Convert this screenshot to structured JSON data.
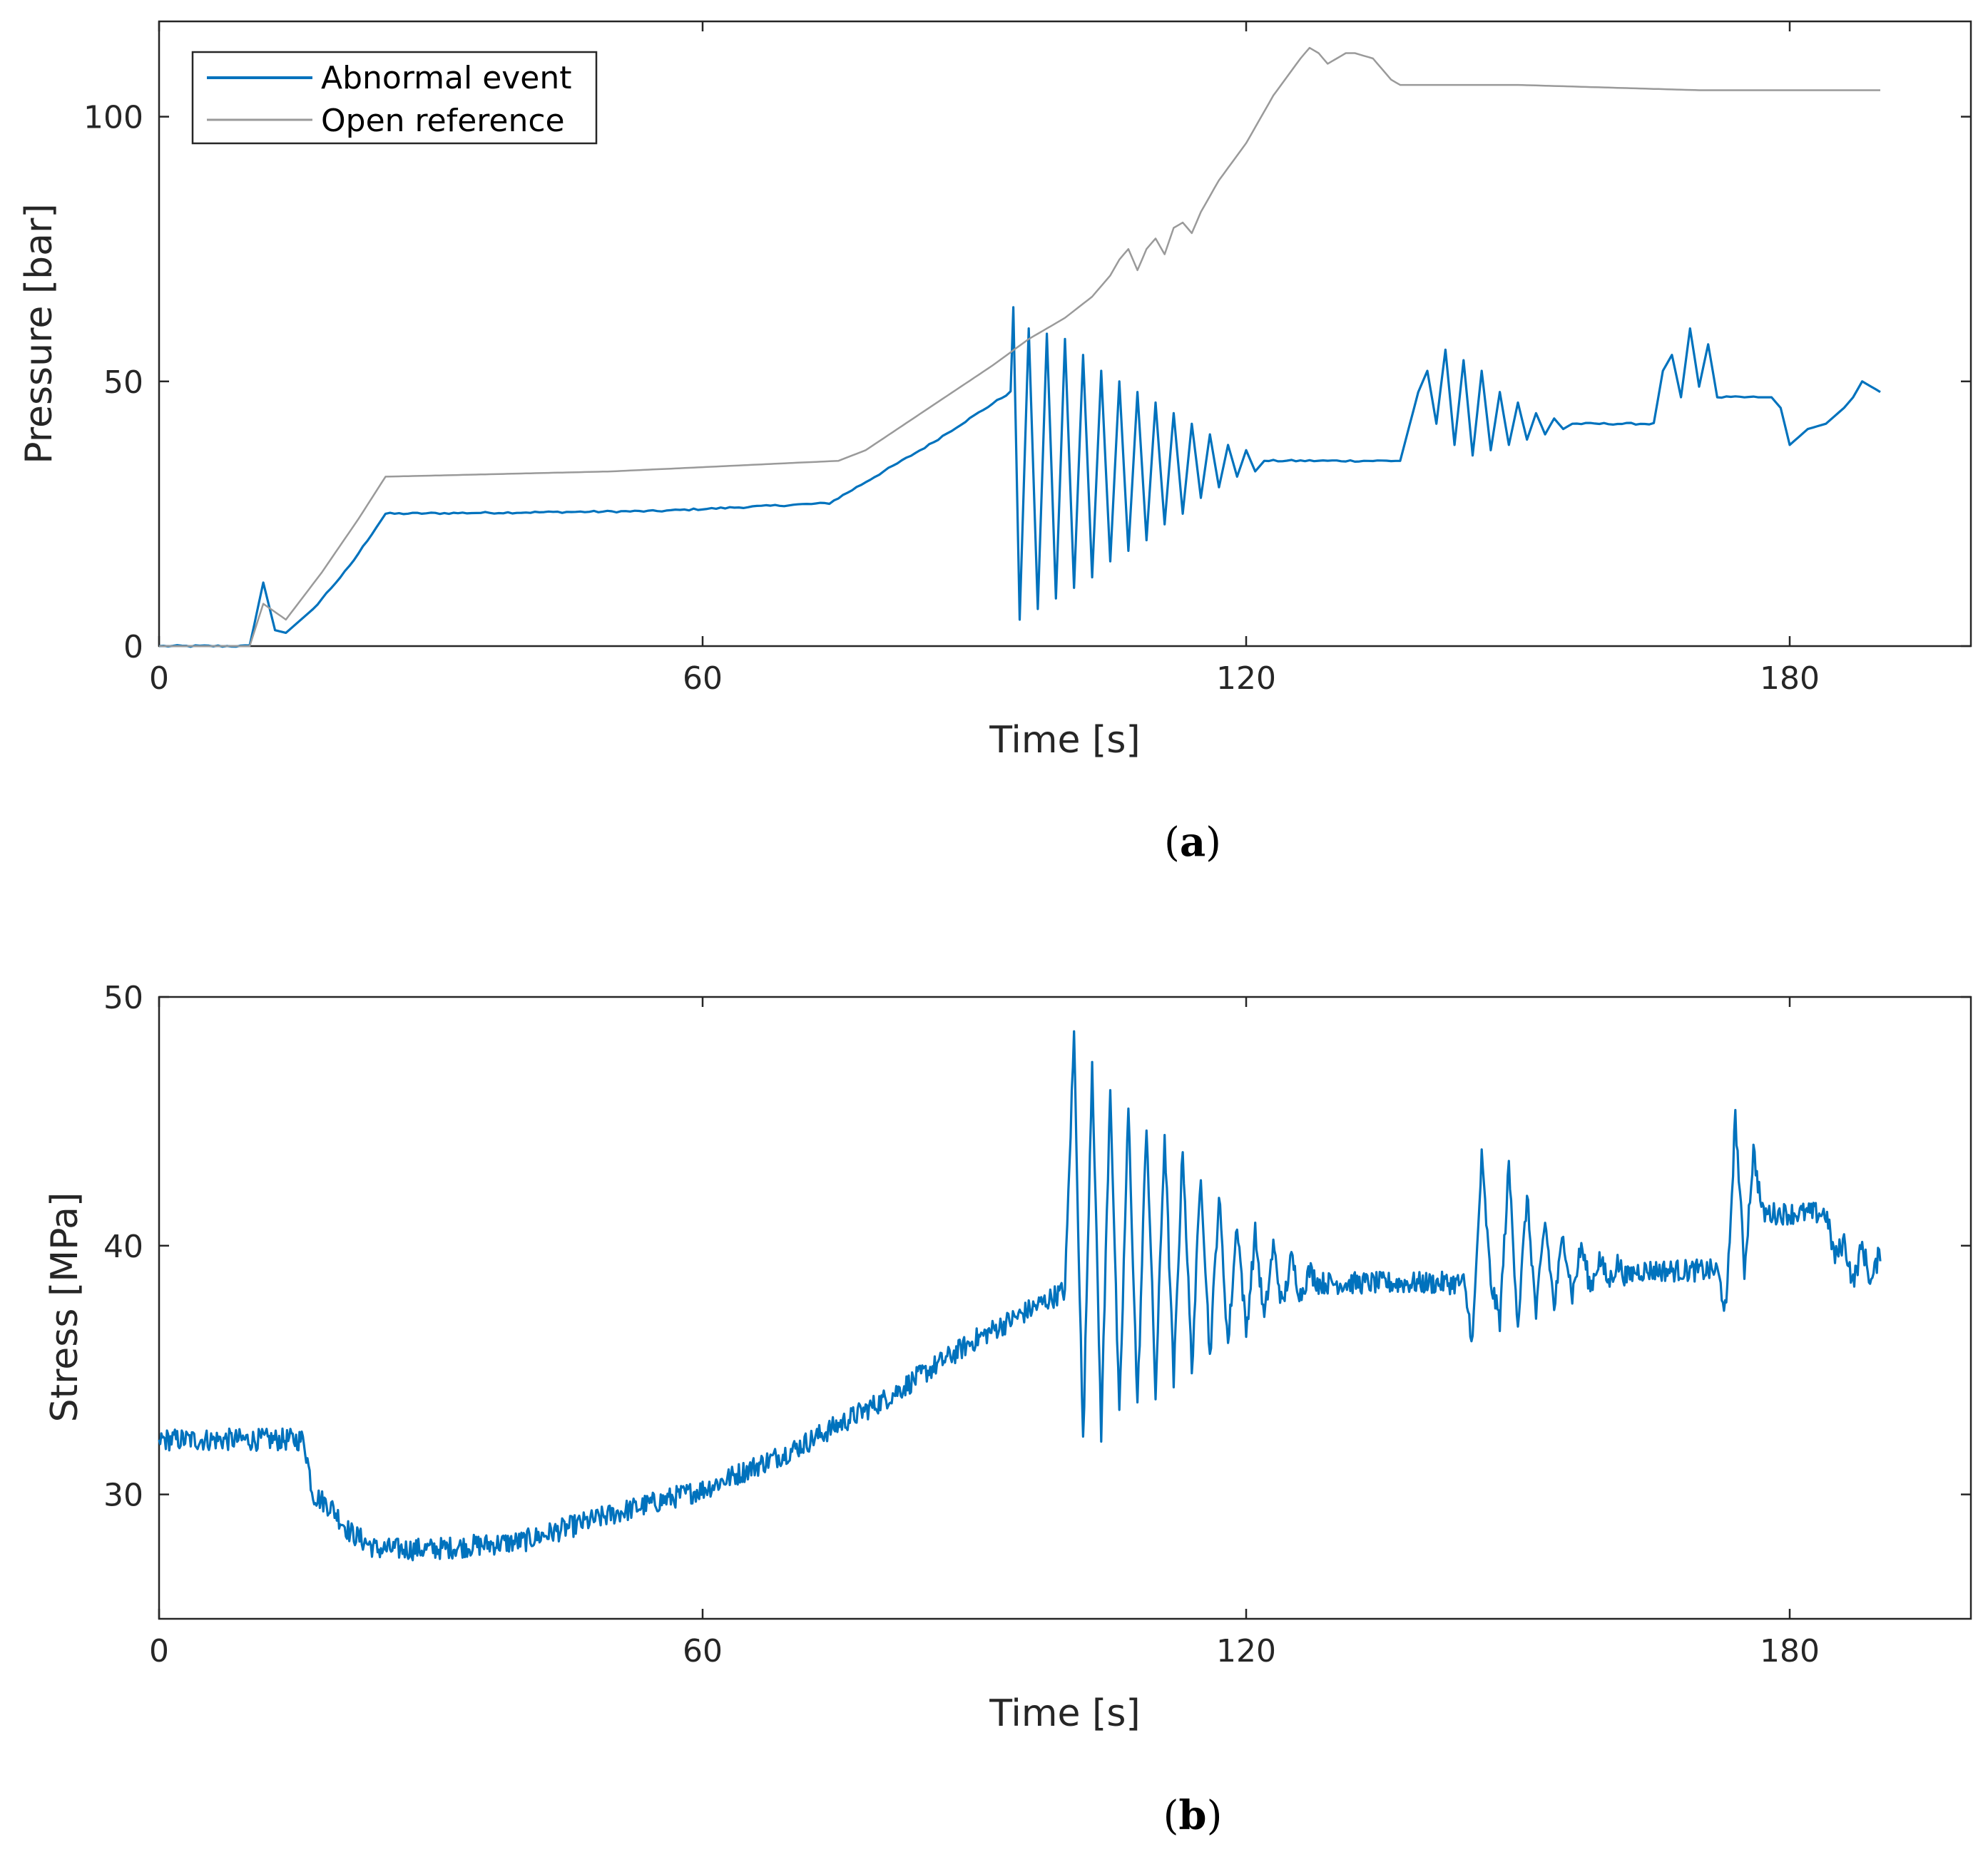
{
  "chart_data": [
    {
      "id": "a",
      "type": "line",
      "caption": "a",
      "xlabel": "Time [s]",
      "ylabel": "Pressure [bar]",
      "xlim": [
        0,
        200
      ],
      "ylim": [
        0,
        118
      ],
      "xticks": [
        0,
        60,
        120,
        180
      ],
      "yticks": [
        0,
        50,
        100
      ],
      "legend": {
        "placement": "top-left",
        "entries": [
          "Abnormal event",
          "Open reference"
        ]
      },
      "series": [
        {
          "name": "Abnormal event",
          "color": "#0072BD",
          "points": [
            [
              0,
              0
            ],
            [
              10,
              0
            ],
            [
              11.5,
              12
            ],
            [
              12.8,
              3
            ],
            [
              14,
              2.5
            ],
            [
              17,
              7
            ],
            [
              21,
              15
            ],
            [
              25,
              25
            ],
            [
              55,
              25.5
            ],
            [
              74,
              27
            ],
            [
              85,
              38
            ],
            [
              94,
              48
            ],
            [
              94.3,
              64
            ],
            [
              95,
              5
            ],
            [
              96,
              60
            ],
            [
              97,
              7
            ],
            [
              98,
              59
            ],
            [
              99,
              9
            ],
            [
              100,
              58
            ],
            [
              101,
              11
            ],
            [
              102,
              55
            ],
            [
              103,
              13
            ],
            [
              104,
              52
            ],
            [
              105,
              16
            ],
            [
              106,
              50
            ],
            [
              107,
              18
            ],
            [
              108,
              48
            ],
            [
              109,
              20
            ],
            [
              110,
              46
            ],
            [
              111,
              23
            ],
            [
              112,
              44
            ],
            [
              113,
              25
            ],
            [
              114,
              42
            ],
            [
              115,
              28
            ],
            [
              116,
              40
            ],
            [
              117,
              30
            ],
            [
              118,
              38
            ],
            [
              119,
              32
            ],
            [
              120,
              37
            ],
            [
              121,
              33
            ],
            [
              122,
              35
            ],
            [
              130,
              35
            ],
            [
              137,
              35
            ],
            [
              139,
              48
            ],
            [
              140,
              52
            ],
            [
              141,
              42
            ],
            [
              142,
              56
            ],
            [
              143,
              38
            ],
            [
              144,
              54
            ],
            [
              145,
              36
            ],
            [
              146,
              52
            ],
            [
              147,
              37
            ],
            [
              148,
              48
            ],
            [
              149,
              38
            ],
            [
              150,
              46
            ],
            [
              151,
              39
            ],
            [
              152,
              44
            ],
            [
              153,
              40
            ],
            [
              154,
              43
            ],
            [
              155,
              41
            ],
            [
              156,
              42
            ],
            [
              165,
              42
            ],
            [
              166,
              52
            ],
            [
              167,
              55
            ],
            [
              168,
              47
            ],
            [
              169,
              60
            ],
            [
              170,
              49
            ],
            [
              171,
              57
            ],
            [
              172,
              47
            ],
            [
              176,
              47
            ],
            [
              178,
              47
            ],
            [
              179,
              45
            ],
            [
              180,
              38
            ],
            [
              182,
              41
            ],
            [
              184,
              42
            ],
            [
              186,
              45
            ],
            [
              187,
              47
            ],
            [
              188,
              50
            ],
            [
              189,
              49
            ],
            [
              190,
              48
            ]
          ]
        },
        {
          "name": "Open reference",
          "color": "#9a9a9a",
          "points": [
            [
              0,
              0
            ],
            [
              10,
              0
            ],
            [
              11.5,
              8
            ],
            [
              14,
              5
            ],
            [
              18,
              14
            ],
            [
              22,
              24
            ],
            [
              25,
              32
            ],
            [
              50,
              33
            ],
            [
              75,
              35
            ],
            [
              78,
              37
            ],
            [
              85,
              45
            ],
            [
              92,
              53
            ],
            [
              96,
              58
            ],
            [
              100,
              62
            ],
            [
              103,
              66
            ],
            [
              105,
              70
            ],
            [
              106,
              73
            ],
            [
              107,
              75
            ],
            [
              108,
              71
            ],
            [
              109,
              75
            ],
            [
              110,
              77
            ],
            [
              111,
              74
            ],
            [
              112,
              79
            ],
            [
              113,
              80
            ],
            [
              114,
              78
            ],
            [
              115,
              82
            ],
            [
              116,
              85
            ],
            [
              117,
              88
            ],
            [
              120,
              95
            ],
            [
              123,
              104
            ],
            [
              126,
              111
            ],
            [
              127,
              113
            ],
            [
              128,
              112
            ],
            [
              129,
              110
            ],
            [
              130,
              111
            ],
            [
              131,
              112
            ],
            [
              132,
              112
            ],
            [
              134,
              111
            ],
            [
              136,
              107
            ],
            [
              137,
              106
            ],
            [
              150,
              106
            ],
            [
              170,
              105
            ],
            [
              190,
              105
            ]
          ]
        }
      ]
    },
    {
      "id": "b",
      "type": "line",
      "caption": "b",
      "xlabel": "Time [s]",
      "ylabel": "Stress [MPa]",
      "xlim": [
        0,
        200
      ],
      "ylim": [
        25,
        50
      ],
      "xticks": [
        0,
        60,
        120,
        180
      ],
      "yticks": [
        30,
        40,
        50
      ],
      "series": [
        {
          "name": "Stress",
          "color": "#0072BD",
          "points": [
            [
              0,
              32.2
            ],
            [
              16,
              32.2
            ],
            [
              17,
              30
            ],
            [
              19,
              29.5
            ],
            [
              21,
              28.5
            ],
            [
              24,
              27.8
            ],
            [
              30,
              27.8
            ],
            [
              40,
              28.1
            ],
            [
              50,
              29.2
            ],
            [
              60,
              30.2
            ],
            [
              70,
              31.8
            ],
            [
              80,
              33.8
            ],
            [
              90,
              36.2
            ],
            [
              100,
              38.2
            ],
            [
              101,
              48.5
            ],
            [
              102,
              32
            ],
            [
              103,
              47.5
            ],
            [
              104,
              32.5
            ],
            [
              105,
              46.5
            ],
            [
              106,
              33
            ],
            [
              107,
              45.5
            ],
            [
              108,
              33.5
            ],
            [
              109,
              45
            ],
            [
              110,
              34
            ],
            [
              111,
              44.5
            ],
            [
              112,
              34.5
            ],
            [
              113,
              44
            ],
            [
              114,
              35
            ],
            [
              115,
              43
            ],
            [
              116,
              35.5
            ],
            [
              117,
              42
            ],
            [
              118,
              36
            ],
            [
              119,
              41
            ],
            [
              120,
              36.5
            ],
            [
              121,
              40.5
            ],
            [
              122,
              37
            ],
            [
              123,
              40
            ],
            [
              124,
              37.5
            ],
            [
              125,
              39.5
            ],
            [
              126,
              38
            ],
            [
              127,
              39
            ],
            [
              128,
              38.5
            ],
            [
              140,
              38.5
            ],
            [
              144,
              38.5
            ],
            [
              145,
              36.2
            ],
            [
              146,
              43.5
            ],
            [
              147,
              38.5
            ],
            [
              148,
              37
            ],
            [
              149,
              43.2
            ],
            [
              150,
              36.8
            ],
            [
              151,
              42
            ],
            [
              152,
              37.2
            ],
            [
              153,
              41
            ],
            [
              154,
              37.5
            ],
            [
              155,
              40.5
            ],
            [
              156,
              38
            ],
            [
              157,
              40
            ],
            [
              158,
              38.3
            ],
            [
              159,
              39.5
            ],
            [
              160,
              38.5
            ],
            [
              161,
              39.3
            ],
            [
              162,
              38.7
            ],
            [
              163,
              39
            ],
            [
              172,
              39
            ],
            [
              173,
              37.3
            ],
            [
              174,
              45.2
            ],
            [
              175,
              39
            ],
            [
              176,
              43.8
            ],
            [
              177,
              41.3
            ],
            [
              184,
              41.3
            ],
            [
              185,
              39.5
            ],
            [
              186,
              40.2
            ],
            [
              187,
              38.5
            ],
            [
              188,
              40
            ],
            [
              189,
              38.5
            ],
            [
              190,
              39.8
            ]
          ]
        }
      ]
    }
  ]
}
